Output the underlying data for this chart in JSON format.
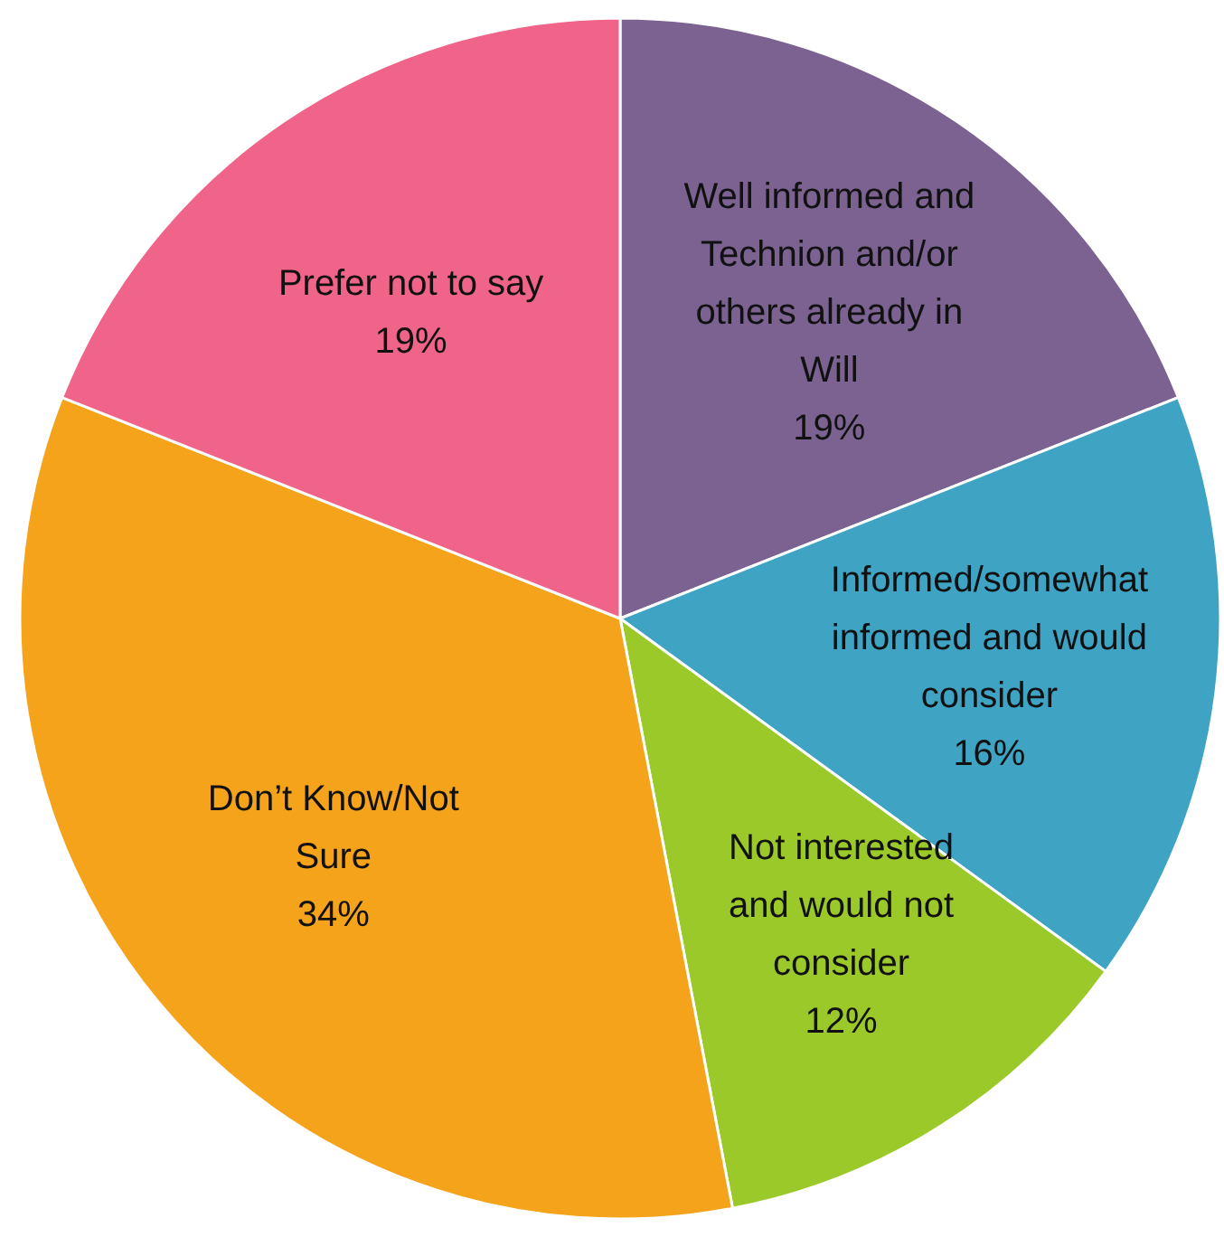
{
  "chart_data": {
    "type": "pie",
    "categories": [
      "Well informed and Technion and/or others already in Will",
      "Informed/somewhat informed and would consider",
      "Not interested and would not consider",
      "Don’t Know/Not Sure",
      "Prefer not to say"
    ],
    "values": [
      19,
      16,
      12,
      34,
      19
    ],
    "value_labels": [
      "19%",
      "16%",
      "12%",
      "34%",
      "19%"
    ],
    "colors": [
      "#7b6291",
      "#3fa3c4",
      "#9bc92a",
      "#f4a31b",
      "#ef6488"
    ]
  }
}
